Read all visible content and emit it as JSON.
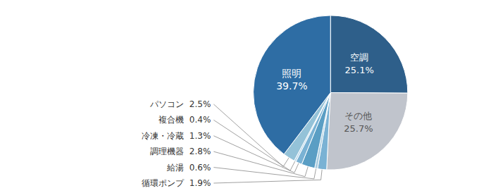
{
  "chart_data": {
    "type": "pie",
    "categories": [
      "空調",
      "その他",
      "循環ポンプ",
      "給湯",
      "調理機器",
      "冷凍・冷蔵",
      "複合機",
      "パソコン",
      "照明"
    ],
    "values": [
      25.1,
      25.7,
      1.9,
      0.6,
      2.8,
      1.3,
      0.4,
      2.5,
      39.7
    ],
    "value_labels": [
      "空調\n25.1%",
      "その他\n25.7%",
      "循環ポンプ  1.9%",
      "給湯  0.6%",
      "調理機器  2.8%",
      "冷凍・冷蔵  1.3%",
      "複合機  0.4%",
      "パソコン  2.5%",
      "照明\n39.7%"
    ],
    "colors": [
      "#2e5f8a",
      "#c0c4cc",
      "#7ab2d4",
      "#a8cce0",
      "#5a9ec4",
      "#7ab2d4",
      "#b8d8ec",
      "#94c2d8",
      "#2e6da4"
    ],
    "data_labels": true
  }
}
